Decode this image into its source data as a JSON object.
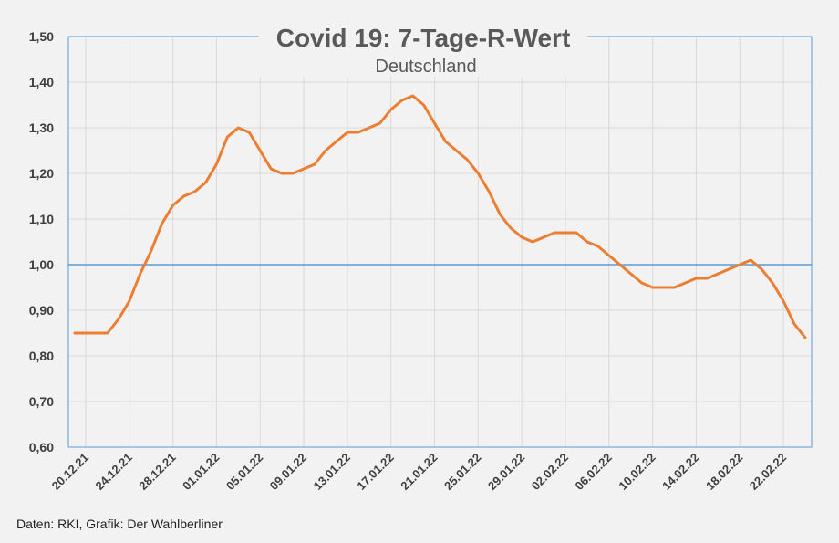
{
  "chart_data": {
    "type": "line",
    "title": "Covid 19: 7-Tage-R-Wert",
    "subtitle": "Deutschland",
    "xlabel": "",
    "ylabel": "",
    "ylim": [
      0.6,
      1.5
    ],
    "y_ticks": [
      "0,60",
      "0,70",
      "0,80",
      "0,90",
      "1,00",
      "1,10",
      "1,20",
      "1,30",
      "1,40",
      "1,50"
    ],
    "x_ticks": [
      "20.12.21",
      "24.12.21",
      "28.12.21",
      "01.01.22",
      "05.01.22",
      "09.01.22",
      "13.01.22",
      "17.01.22",
      "21.01.22",
      "25.01.22",
      "29.01.22",
      "02.02.22",
      "06.02.22",
      "10.02.22",
      "14.02.22",
      "18.02.22",
      "22.02.22"
    ],
    "reference_line": 1.0,
    "grid": true,
    "series": [
      {
        "x": [
          "19.12.21",
          "20.12.21",
          "21.12.21",
          "22.12.21",
          "23.12.21",
          "24.12.21",
          "25.12.21",
          "26.12.21",
          "27.12.21",
          "28.12.21",
          "29.12.21",
          "30.12.21",
          "31.12.21",
          "01.01.22",
          "02.01.22",
          "03.01.22",
          "04.01.22",
          "05.01.22",
          "06.01.22",
          "07.01.22",
          "08.01.22",
          "09.01.22",
          "10.01.22",
          "11.01.22",
          "12.01.22",
          "13.01.22",
          "14.01.22",
          "15.01.22",
          "16.01.22",
          "17.01.22",
          "18.01.22",
          "19.01.22",
          "20.01.22",
          "21.01.22",
          "22.01.22",
          "23.01.22",
          "24.01.22",
          "25.01.22",
          "26.01.22",
          "27.01.22",
          "28.01.22",
          "29.01.22",
          "30.01.22",
          "31.01.22",
          "01.02.22",
          "02.02.22",
          "03.02.22",
          "04.02.22",
          "05.02.22",
          "06.02.22",
          "07.02.22",
          "08.02.22",
          "09.02.22",
          "10.02.22",
          "11.02.22",
          "12.02.22",
          "13.02.22",
          "14.02.22",
          "15.02.22",
          "16.02.22",
          "17.02.22",
          "18.02.22",
          "19.02.22",
          "20.02.22",
          "21.02.22",
          "22.02.22",
          "23.02.22",
          "24.02.22"
        ],
        "values": [
          0.85,
          0.85,
          0.85,
          0.85,
          0.88,
          0.92,
          0.98,
          1.03,
          1.09,
          1.13,
          1.15,
          1.16,
          1.18,
          1.22,
          1.28,
          1.3,
          1.29,
          1.25,
          1.21,
          1.2,
          1.2,
          1.21,
          1.22,
          1.25,
          1.27,
          1.29,
          1.29,
          1.3,
          1.31,
          1.34,
          1.36,
          1.37,
          1.35,
          1.31,
          1.27,
          1.25,
          1.23,
          1.2,
          1.16,
          1.11,
          1.08,
          1.06,
          1.05,
          1.06,
          1.07,
          1.07,
          1.07,
          1.05,
          1.04,
          1.02,
          1.0,
          0.98,
          0.96,
          0.95,
          0.95,
          0.95,
          0.96,
          0.97,
          0.97,
          0.98,
          0.99,
          1.0,
          1.01,
          0.99,
          0.96,
          0.92,
          0.87,
          0.84
        ],
        "color": "#ED7D31"
      }
    ],
    "reference_color": "#5B9BD5",
    "source": "Daten: RKI, Grafik: Der Wahlberliner"
  }
}
